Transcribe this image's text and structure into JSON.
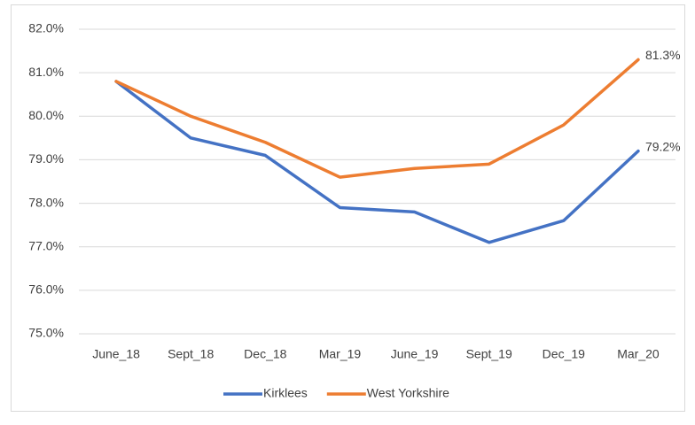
{
  "chart_data": {
    "type": "line",
    "categories": [
      "June_18",
      "Sept_18",
      "Dec_18",
      "Mar_19",
      "June_19",
      "Sept_19",
      "Dec_19",
      "Mar_20"
    ],
    "series": [
      {
        "name": "Kirklees",
        "color": "#4472c4",
        "values": [
          80.8,
          79.5,
          79.1,
          77.9,
          77.8,
          77.1,
          77.6,
          79.2
        ],
        "value_labels": [
          null,
          null,
          null,
          null,
          null,
          null,
          null,
          "79.2%"
        ]
      },
      {
        "name": "West Yorkshire",
        "color": "#ed7d31",
        "values": [
          80.8,
          80.0,
          79.4,
          78.6,
          78.8,
          78.9,
          79.8,
          81.3
        ],
        "value_labels": [
          null,
          null,
          null,
          null,
          null,
          null,
          null,
          "81.3%"
        ]
      }
    ],
    "ylim": [
      75,
      82
    ],
    "yticks": [
      {
        "value": 75,
        "label": "75.0%"
      },
      {
        "value": 76,
        "label": "76.0%"
      },
      {
        "value": 77,
        "label": "77.0%"
      },
      {
        "value": 78,
        "label": "78.0%"
      },
      {
        "value": 79,
        "label": "79.0%"
      },
      {
        "value": 80,
        "label": "80.0%"
      },
      {
        "value": 81,
        "label": "81.0%"
      },
      {
        "value": 82,
        "label": "82.0%"
      }
    ],
    "grid": true,
    "legend": "bottom"
  }
}
